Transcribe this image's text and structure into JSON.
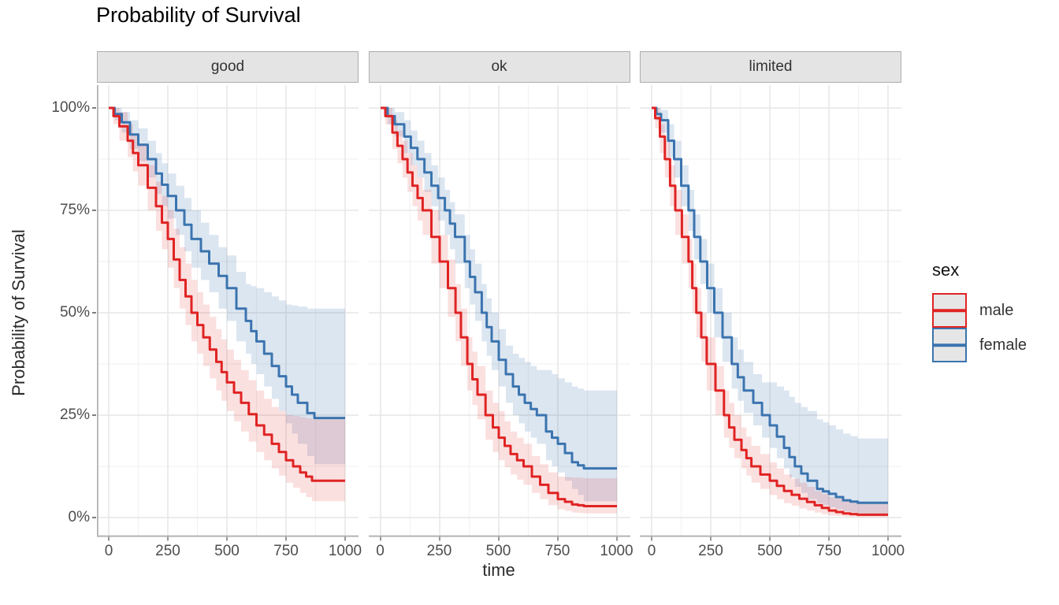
{
  "chart_data": {
    "type": "line",
    "subtype": "kaplan-meier-survival-steps",
    "title": "Probability of Survival",
    "grid": true,
    "confidence_bands": true,
    "x_axis": {
      "label": "time",
      "range": [
        0,
        1000
      ],
      "ticks": [
        0,
        250,
        500,
        750,
        1000
      ],
      "tick_labels": [
        "0",
        "250",
        "500",
        "750",
        "1000"
      ],
      "minor_ticks": [
        125,
        375,
        625,
        875
      ]
    },
    "y_axis": {
      "label": "Probability of Survival",
      "range": [
        0,
        100
      ],
      "ticks": [
        100,
        75,
        50,
        25,
        0
      ],
      "tick_labels": [
        "100%",
        "75%",
        "50%",
        "25%",
        "0%"
      ],
      "minor_ticks": [
        12.5,
        37.5,
        62.5,
        87.5
      ]
    },
    "legend": {
      "title": "sex",
      "position": "right",
      "entries": [
        {
          "label": "male",
          "color": "#E02323"
        },
        {
          "label": "female",
          "color": "#3B74AF"
        }
      ]
    },
    "style": {
      "male_color": "#E02323",
      "female_color": "#3B74AF",
      "male_band_fill": "rgba(224,35,35,0.14)",
      "female_band_fill": "rgba(59,116,175,0.18)",
      "grid_major_color": "#e6e6e6",
      "grid_minor_color": "#f2f2f2",
      "axis_line_color": "#b3b3b3",
      "tick_mark_color": "#7f7f7f",
      "strip_fill": "#e4e4e4",
      "strip_border": "#adadad"
    },
    "facets": [
      {
        "label": "good",
        "series": [
          {
            "name": "female",
            "points": [
              [
                0,
                100,
                100,
                100
              ],
              [
                25,
                98.5,
                97,
                100
              ],
              [
                55,
                96.5,
                94,
                99
              ],
              [
                90,
                93.5,
                90,
                97
              ],
              [
                125,
                91,
                87,
                95
              ],
              [
                165,
                87.5,
                83,
                92
              ],
              [
                200,
                84,
                79,
                89
              ],
              [
                250,
                78.5,
                73,
                84
              ],
              [
                285,
                75,
                69,
                81
              ],
              [
                320,
                71.5,
                65,
                78
              ],
              [
                350,
                68,
                61,
                75
              ],
              [
                390,
                65,
                58,
                72
              ],
              [
                425,
                62,
                55,
                69
              ],
              [
                465,
                59,
                51,
                66
              ],
              [
                500,
                56,
                48,
                64
              ],
              [
                540,
                51,
                43,
                60
              ],
              [
                580,
                48,
                40,
                57
              ],
              [
                625,
                43,
                35,
                56
              ],
              [
                690,
                37,
                29,
                54
              ],
              [
                750,
                32,
                23,
                52
              ],
              [
                800,
                28,
                18,
                51.5
              ],
              [
                840,
                25.5,
                15,
                51
              ],
              [
                870,
                24.3,
                13,
                51
              ],
              [
                1000,
                24.3,
                13,
                51
              ]
            ]
          },
          {
            "name": "male",
            "points": [
              [
                0,
                100,
                100,
                100
              ],
              [
                20,
                98,
                96,
                100
              ],
              [
                45,
                95.5,
                92,
                99
              ],
              [
                80,
                92,
                88,
                96
              ],
              [
                125,
                86,
                81,
                91
              ],
              [
                165,
                80.5,
                75,
                86
              ],
              [
                200,
                76,
                70,
                82
              ],
              [
                250,
                68,
                61,
                75
              ],
              [
                300,
                58,
                51,
                66
              ],
              [
                350,
                50,
                43,
                58
              ],
              [
                400,
                44,
                37,
                52
              ],
              [
                455,
                38,
                31,
                46
              ],
              [
                500,
                33,
                26,
                41
              ],
              [
                560,
                28,
                21,
                36
              ],
              [
                625,
                22.5,
                16,
                31
              ],
              [
                690,
                18,
                12,
                27
              ],
              [
                750,
                14,
                8.5,
                25
              ],
              [
                810,
                11,
                6,
                24.5
              ],
              [
                860,
                9,
                4,
                24
              ],
              [
                1000,
                9,
                4,
                24
              ]
            ]
          }
        ]
      },
      {
        "label": "ok",
        "series": [
          {
            "name": "female",
            "points": [
              [
                0,
                100,
                100,
                100
              ],
              [
                30,
                98,
                96,
                100
              ],
              [
                60,
                96,
                93,
                99
              ],
              [
                100,
                93,
                89,
                97
              ],
              [
                156,
                87.5,
                83,
                92
              ],
              [
                215,
                81,
                76,
                86
              ],
              [
                272,
                75,
                69,
                80
              ],
              [
                315,
                68.5,
                62,
                74
              ],
              [
                356,
                62.5,
                56,
                69
              ],
              [
                400,
                55,
                48,
                62
              ],
              [
                428,
                50,
                43,
                57
              ],
              [
                470,
                43,
                36,
                50
              ],
              [
                500,
                38.5,
                32,
                46
              ],
              [
                530,
                35,
                28,
                42
              ],
              [
                560,
                32,
                25,
                40
              ],
              [
                610,
                28,
                21,
                38
              ],
              [
                661,
                25,
                18,
                36
              ],
              [
                700,
                21,
                14,
                36
              ],
              [
                750,
                18,
                11,
                34
              ],
              [
                810,
                13.5,
                7,
                32
              ],
              [
                860,
                12,
                4,
                31
              ],
              [
                1000,
                12,
                4,
                31
              ]
            ]
          },
          {
            "name": "male",
            "points": [
              [
                0,
                100,
                100,
                100
              ],
              [
                20,
                98,
                96,
                100
              ],
              [
                50,
                94,
                90,
                97
              ],
              [
                93,
                87.5,
                83,
                92
              ],
              [
                135,
                81,
                76,
                86
              ],
              [
                178,
                75,
                69,
                80
              ],
              [
                215,
                68.5,
                62,
                75
              ],
              [
                250,
                62.5,
                56,
                69
              ],
              [
                285,
                56,
                49,
                63
              ],
              [
                317,
                50,
                43,
                57
              ],
              [
                340,
                44,
                37,
                51
              ],
              [
                367,
                37.5,
                31,
                44
              ],
              [
                410,
                30,
                24,
                37
              ],
              [
                444,
                25,
                19,
                31
              ],
              [
                475,
                22,
                16,
                28
              ],
              [
                500,
                19.5,
                14,
                26
              ],
              [
                550,
                15.5,
                10.5,
                21
              ],
              [
                605,
                12.5,
                8,
                18
              ],
              [
                640,
                10,
                6,
                15
              ],
              [
                675,
                8,
                4.5,
                13
              ],
              [
                710,
                6,
                3,
                11
              ],
              [
                750,
                4.5,
                2,
                10
              ],
              [
                810,
                3.2,
                1.2,
                9.8
              ],
              [
                860,
                2.8,
                1,
                9.6
              ],
              [
                1000,
                2.8,
                1,
                9.6
              ]
            ]
          }
        ]
      },
      {
        "label": "limited",
        "series": [
          {
            "name": "female",
            "points": [
              [
                0,
                100,
                100,
                100
              ],
              [
                20,
                98.5,
                97,
                100
              ],
              [
                40,
                97,
                94,
                99.5
              ],
              [
                70,
                92,
                88,
                96
              ],
              [
                95,
                87.5,
                83,
                92
              ],
              [
                125,
                81,
                76,
                86
              ],
              [
                156,
                75,
                70,
                80
              ],
              [
                180,
                68.5,
                63,
                74
              ],
              [
                206,
                62.5,
                57,
                68
              ],
              [
                235,
                56,
                50,
                62
              ],
              [
                265,
                50,
                44,
                56
              ],
              [
                300,
                44,
                38,
                50
              ],
              [
                339,
                37.5,
                31.5,
                44
              ],
              [
                390,
                31,
                25.5,
                38
              ],
              [
                430,
                28,
                22.5,
                35
              ],
              [
                467,
                25,
                19.5,
                33
              ],
              [
                500,
                22.5,
                17,
                33
              ],
              [
                560,
                17,
                12,
                31
              ],
              [
                606,
                12.5,
                7.5,
                28
              ],
              [
                660,
                9,
                4.5,
                26
              ],
              [
                700,
                7,
                3.5,
                24
              ],
              [
                750,
                5.8,
                2.5,
                22.5
              ],
              [
                810,
                4.2,
                1.5,
                20.5
              ],
              [
                872,
                3.6,
                1,
                19.3
              ],
              [
                1000,
                3.6,
                1,
                19.3
              ]
            ]
          },
          {
            "name": "male",
            "points": [
              [
                0,
                100,
                100,
                100
              ],
              [
                15,
                97.5,
                95,
                100
              ],
              [
                35,
                93,
                89,
                96
              ],
              [
                56,
                87.5,
                83,
                92
              ],
              [
                78,
                81,
                76,
                86
              ],
              [
                100,
                75,
                69,
                80
              ],
              [
                128,
                68.5,
                62,
                74
              ],
              [
                156,
                62.5,
                56,
                68
              ],
              [
                172,
                56,
                50,
                62
              ],
              [
                189,
                50,
                44,
                56
              ],
              [
                210,
                44,
                38,
                50
              ],
              [
                233,
                37.5,
                31,
                44
              ],
              [
                270,
                31,
                25,
                37
              ],
              [
                306,
                25,
                19.5,
                31
              ],
              [
                350,
                19,
                14.5,
                25
              ],
              [
                380,
                16.5,
                12,
                22
              ],
              [
                422,
                12.5,
                8.5,
                17.5
              ],
              [
                460,
                10.5,
                7,
                15.5
              ],
              [
                500,
                9,
                5.5,
                13.5
              ],
              [
                560,
                6.5,
                3.5,
                10.5
              ],
              [
                625,
                4.6,
                2.2,
                8.5
              ],
              [
                690,
                3,
                1.2,
                6.5
              ],
              [
                750,
                1.7,
                0.5,
                5
              ],
              [
                810,
                1,
                0.25,
                4.2
              ],
              [
                870,
                0.7,
                0.1,
                3.8
              ],
              [
                1000,
                0.7,
                0.1,
                3.8
              ]
            ]
          }
        ]
      }
    ]
  }
}
